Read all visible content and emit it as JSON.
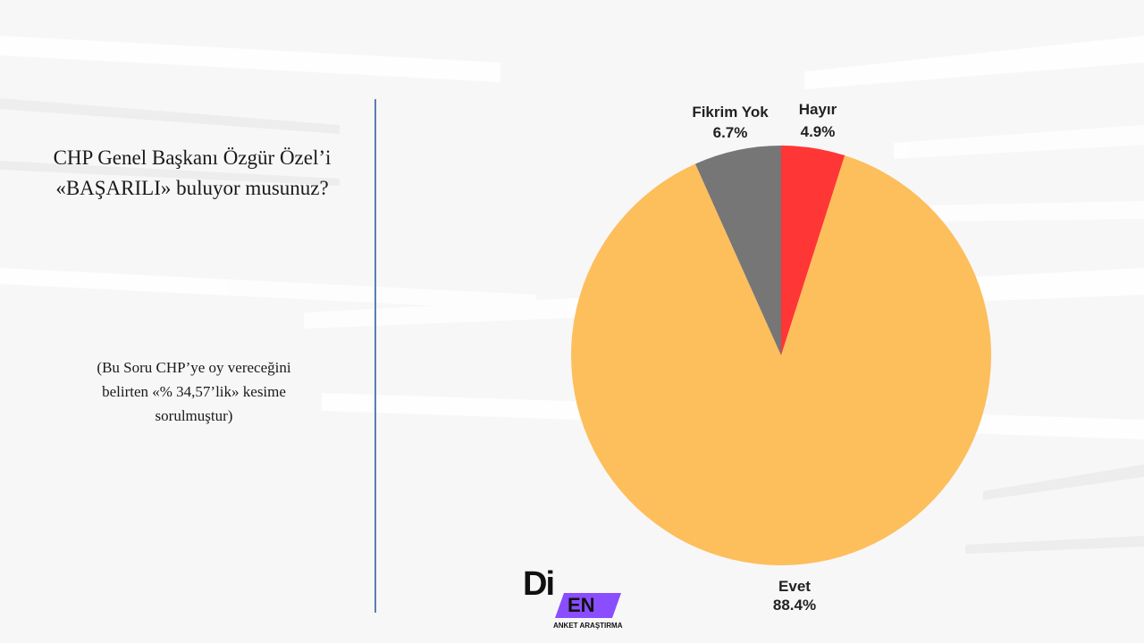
{
  "question": "CHP Genel Başkanı Özgür Özel’i «BAŞARILI» buluyor musunuz?",
  "note": "(Bu Soru CHP’ye oy vereceğini belirten «% 34,57’lik» kesime sorulmuştur)",
  "logo": {
    "main": "Di",
    "badge": "EN",
    "subtitle": "ANKET ARAŞTIRMA",
    "badge_color": "#8a4dff"
  },
  "chart_data": {
    "type": "pie",
    "slices": [
      {
        "label": "Hayır",
        "value": 4.9,
        "display": "4.9%",
        "color": "#ff3636"
      },
      {
        "label": "Evet",
        "value": 88.4,
        "display": "88.4%",
        "color": "#fdbe5c"
      },
      {
        "label": "Fikrim Yok",
        "value": 6.7,
        "display": "6.7%",
        "color": "#767676"
      }
    ]
  }
}
